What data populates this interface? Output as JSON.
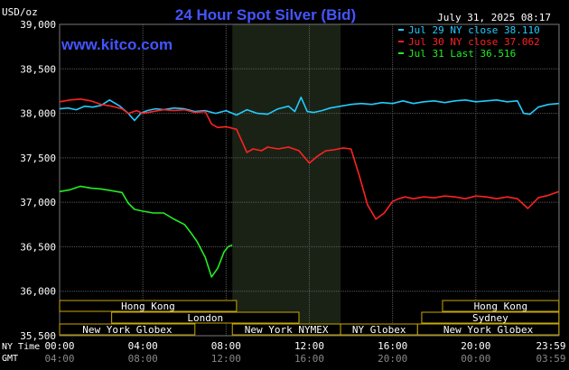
{
  "header": {
    "title": "24 Hour Spot Silver (Bid)",
    "unit_label": "USD/oz",
    "datetime": "July 31, 2025 08:17",
    "watermark": "www.kitco.com"
  },
  "legend": [
    {
      "text": "Jul 29 NY close 38.110",
      "color": "#22ccff"
    },
    {
      "text": "Jul 30 NY close 37.062",
      "color": "#ff2222"
    },
    {
      "text": "Jul 31 Last 36.516",
      "color": "#22ee22"
    }
  ],
  "axis": {
    "row1_label": "NY Time",
    "row2_label": "GMT",
    "ny_ticks": [
      "00:00",
      "04:00",
      "08:00",
      "12:00",
      "16:00",
      "20:00",
      "23:59"
    ],
    "gmt_ticks": [
      "04:00",
      "08:00",
      "12:00",
      "16:00",
      "20:00",
      "00:00",
      "03:59"
    ]
  },
  "sessions": [
    {
      "label": "Hong Kong",
      "start": 0,
      "end": 8.5,
      "row": 0
    },
    {
      "label": "Hong Kong",
      "start": 18.4,
      "end": 24,
      "row": 0
    },
    {
      "label": "London",
      "start": 2.5,
      "end": 11.5,
      "row": 1
    },
    {
      "label": "Sydney",
      "start": 17.4,
      "end": 24,
      "row": 1
    },
    {
      "label": "New York Globex",
      "start": 0,
      "end": 6.5,
      "row": 2
    },
    {
      "label": "New York NYMEX",
      "start": 8.3,
      "end": 13.5,
      "row": 2
    },
    {
      "label": "NY Globex",
      "start": 13.5,
      "end": 17.2,
      "row": 2
    },
    {
      "label": "New York Globex",
      "start": 17.2,
      "end": 24,
      "row": 2
    }
  ],
  "colors": {
    "background": "#000000",
    "plot_background": "#000000",
    "nymex_shade": "#1a2216",
    "grid": "#5a5a5a",
    "title": "#4455ff",
    "session_box": "#c8a800",
    "text": "#ffffff"
  },
  "chart_data": {
    "type": "line",
    "title": "24 Hour Spot Silver (Bid)",
    "ylabel": "USD/oz",
    "xlabel": "NY Time",
    "xlim": [
      0,
      24
    ],
    "ylim": [
      35500,
      39000
    ],
    "yticks": [
      35500,
      36000,
      36500,
      37000,
      37500,
      38000,
      38500,
      39000
    ],
    "ytick_labels": [
      "35,500",
      "36,000",
      "36,500",
      "37,000",
      "37,500",
      "38,000",
      "38,500",
      "39,000"
    ],
    "grid": true,
    "legend_position": "top-right",
    "shaded_region": {
      "start": 8.3,
      "end": 13.5
    },
    "series": [
      {
        "name": "Jul 29 NY close 38.110",
        "color": "#22ccff",
        "x": [
          0,
          0.4,
          0.8,
          1.2,
          1.6,
          2.0,
          2.4,
          2.9,
          3.3,
          3.6,
          3.9,
          4.2,
          4.6,
          5.0,
          5.5,
          6.0,
          6.5,
          7.0,
          7.5,
          8.0,
          8.5,
          9.0,
          9.5,
          10.0,
          10.5,
          11.0,
          11.3,
          11.6,
          11.9,
          12.2,
          12.6,
          13.0,
          13.5,
          14.0,
          14.5,
          15.0,
          15.5,
          16.0,
          16.5,
          17.0,
          17.5,
          18.0,
          18.5,
          19.0,
          19.5,
          20.0,
          20.5,
          21.0,
          21.5,
          22.0,
          22.3,
          22.6,
          23.0,
          23.5,
          23.99
        ],
        "y": [
          38050,
          38060,
          38040,
          38080,
          38070,
          38090,
          38150,
          38080,
          38000,
          37920,
          38000,
          38030,
          38050,
          38040,
          38060,
          38050,
          38020,
          38030,
          38000,
          38030,
          37980,
          38040,
          38000,
          37990,
          38050,
          38080,
          38020,
          38180,
          38020,
          38010,
          38030,
          38060,
          38080,
          38100,
          38110,
          38100,
          38120,
          38110,
          38140,
          38110,
          38130,
          38140,
          38120,
          38140,
          38150,
          38130,
          38140,
          38150,
          38130,
          38140,
          38000,
          37990,
          38070,
          38100,
          38110
        ]
      },
      {
        "name": "Jul 30 NY close 37.062",
        "color": "#ff2222",
        "x": [
          0,
          0.5,
          1.0,
          1.5,
          2.0,
          2.5,
          3.0,
          3.3,
          3.7,
          4.0,
          4.5,
          5.0,
          5.5,
          6.0,
          6.5,
          7.0,
          7.3,
          7.6,
          8.0,
          8.5,
          9.0,
          9.3,
          9.7,
          10.0,
          10.5,
          11.0,
          11.5,
          12.0,
          12.4,
          12.8,
          13.2,
          13.6,
          14.0,
          14.4,
          14.8,
          15.2,
          15.6,
          16.0,
          16.3,
          16.6,
          17.0,
          17.5,
          18.0,
          18.5,
          19.0,
          19.5,
          20.0,
          20.5,
          21.0,
          21.5,
          22.0,
          22.5,
          23.0,
          23.5,
          23.99
        ],
        "y": [
          38130,
          38150,
          38160,
          38140,
          38100,
          38080,
          38050,
          38000,
          38030,
          38000,
          38020,
          38040,
          38030,
          38040,
          38010,
          38020,
          37880,
          37840,
          37850,
          37820,
          37560,
          37600,
          37580,
          37620,
          37600,
          37620,
          37580,
          37440,
          37520,
          37580,
          37590,
          37610,
          37600,
          37300,
          36970,
          36810,
          36880,
          37010,
          37040,
          37060,
          37040,
          37060,
          37050,
          37070,
          37060,
          37040,
          37070,
          37060,
          37040,
          37060,
          37040,
          36930,
          37050,
          37080,
          37120
        ]
      },
      {
        "name": "Jul 31 Last 36.516",
        "color": "#22ee22",
        "x": [
          0,
          0.5,
          1.0,
          1.5,
          2.0,
          2.5,
          3.0,
          3.3,
          3.6,
          4.0,
          4.5,
          5.0,
          5.5,
          6.0,
          6.3,
          6.6,
          7.0,
          7.3,
          7.6,
          7.9,
          8.1,
          8.3
        ],
        "y": [
          37120,
          37140,
          37180,
          37160,
          37150,
          37130,
          37110,
          36990,
          36920,
          36900,
          36880,
          36880,
          36810,
          36750,
          36660,
          36560,
          36380,
          36160,
          36260,
          36440,
          36500,
          36520
        ]
      }
    ]
  }
}
